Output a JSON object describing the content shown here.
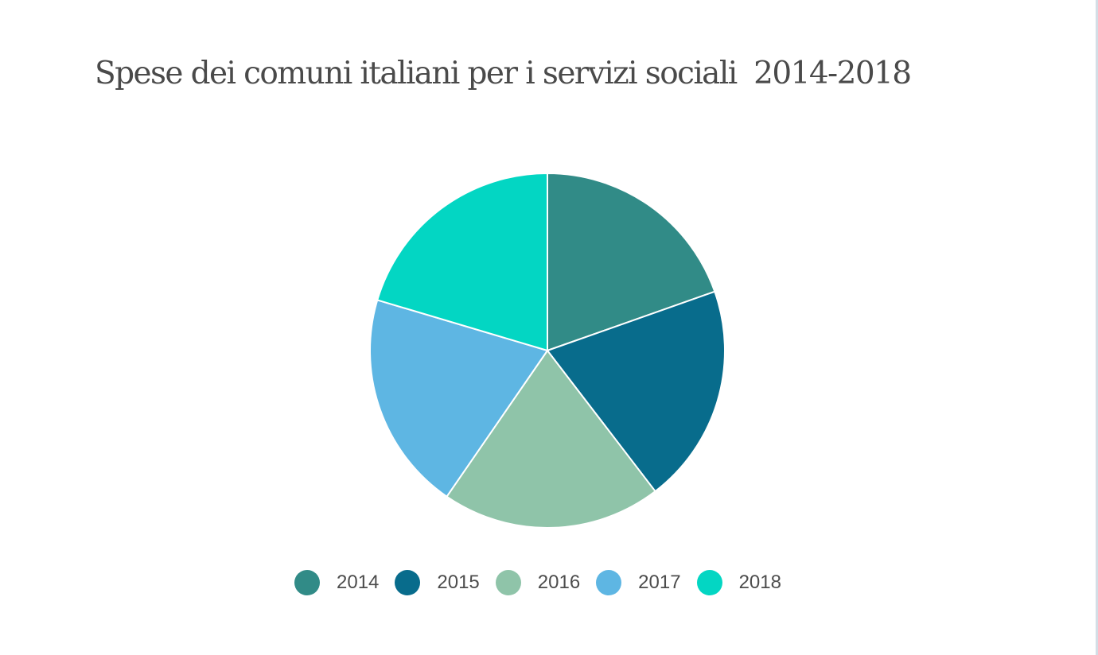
{
  "chart_data": {
    "type": "pie",
    "title": "Spese dei comuni italiani per i servizi sociali  2014-2018",
    "categories": [
      "2014",
      "2015",
      "2016",
      "2017",
      "2018"
    ],
    "values": [
      19.6,
      20.0,
      20.0,
      20.0,
      20.4
    ],
    "colors": [
      "#318b87",
      "#086c8c",
      "#8fc4a9",
      "#5eb6e3",
      "#03d6c3"
    ],
    "legend_position": "bottom"
  }
}
